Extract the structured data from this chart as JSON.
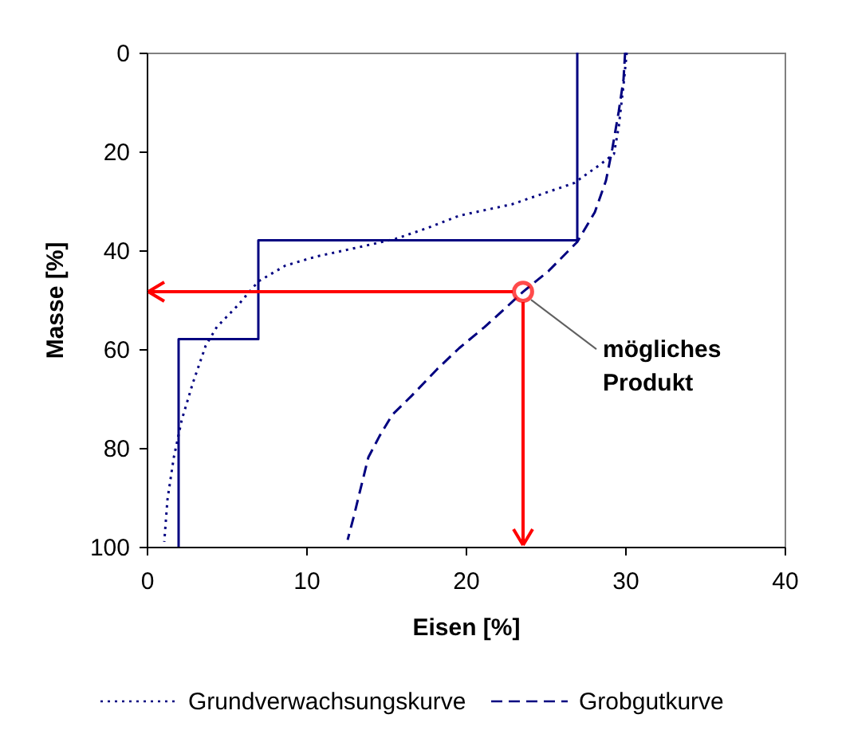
{
  "chart_data": {
    "type": "line",
    "xlabel": "Eisen [%]",
    "ylabel": "Masse [%]",
    "xlim": [
      0,
      40
    ],
    "xticks": [
      0,
      10,
      20,
      30,
      40
    ],
    "ylim": [
      100,
      0
    ],
    "yticks": [
      0,
      20,
      40,
      60,
      80,
      100
    ],
    "grid": false,
    "legend": "bottom",
    "series": [
      {
        "color": "#000080",
        "line_style": "solid",
        "x": [
          27,
          27,
          7,
          7,
          2,
          2
        ],
        "values": [
          0,
          38,
          38,
          58,
          58,
          100
        ]
      },
      {
        "name": "Grundverwachsungskurve",
        "color": "#000080",
        "line_style": "dotted",
        "x": [
          30.1,
          29.9,
          29.6,
          29.3,
          28.5,
          27.5,
          26.8,
          24.8,
          22.9,
          19.6,
          17.6,
          15.6,
          13,
          10.6,
          8.7,
          7,
          5.7,
          4.4,
          3.7,
          2.9,
          2.2,
          1.7,
          1.3,
          1.1
        ],
        "values": [
          0,
          6.5,
          15,
          20.5,
          22.5,
          24.8,
          26.4,
          28.6,
          30.7,
          33,
          35.5,
          37.7,
          39.6,
          41.3,
          43.1,
          46.3,
          51.2,
          55.5,
          59.3,
          66.8,
          74.3,
          81.9,
          90.5,
          99
        ]
      },
      {
        "name": "Grobgutkurve",
        "color": "#000080",
        "line_style": "dashed",
        "x": [
          30,
          29.9,
          29.6,
          29.2,
          28.8,
          28.1,
          27,
          25.2,
          23.6,
          22.5,
          21.2,
          19.6,
          18.2,
          16.6,
          15.4,
          14.6,
          13.9,
          13.4,
          13,
          12.6
        ],
        "values": [
          0,
          5.4,
          11.9,
          19.4,
          25.9,
          32.3,
          38.3,
          44.2,
          48.4,
          51.7,
          55.5,
          59.8,
          64.1,
          69.5,
          73.3,
          77.6,
          81.9,
          88.4,
          93.7,
          98.6
        ]
      },
      {
        "type": "scatter",
        "color": "#ff0000",
        "marker": "circle",
        "x": [
          23.6
        ],
        "values": [
          48.4
        ]
      }
    ],
    "annotations": [
      {
        "text": "mögliches Produkt",
        "x": 23.6,
        "y": 48.4
      }
    ]
  }
}
